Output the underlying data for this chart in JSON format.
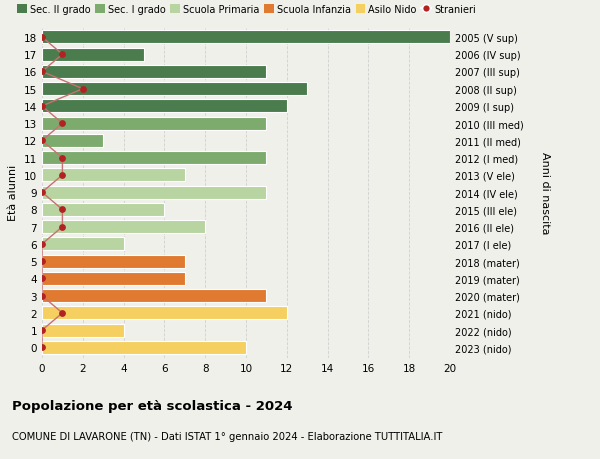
{
  "ages": [
    18,
    17,
    16,
    15,
    14,
    13,
    12,
    11,
    10,
    9,
    8,
    7,
    6,
    5,
    4,
    3,
    2,
    1,
    0
  ],
  "right_labels": [
    "2005 (V sup)",
    "2006 (IV sup)",
    "2007 (III sup)",
    "2008 (II sup)",
    "2009 (I sup)",
    "2010 (III med)",
    "2011 (II med)",
    "2012 (I med)",
    "2013 (V ele)",
    "2014 (IV ele)",
    "2015 (III ele)",
    "2016 (II ele)",
    "2017 (I ele)",
    "2018 (mater)",
    "2019 (mater)",
    "2020 (mater)",
    "2021 (nido)",
    "2022 (nido)",
    "2023 (nido)"
  ],
  "bar_values": [
    20,
    5,
    11,
    13,
    12,
    11,
    3,
    11,
    7,
    11,
    6,
    8,
    4,
    7,
    7,
    11,
    12,
    4,
    10
  ],
  "bar_colors": [
    "#4a7c4e",
    "#4a7c4e",
    "#4a7c4e",
    "#4a7c4e",
    "#4a7c4e",
    "#7dab6e",
    "#7dab6e",
    "#7dab6e",
    "#b8d4a0",
    "#b8d4a0",
    "#b8d4a0",
    "#b8d4a0",
    "#b8d4a0",
    "#e07a30",
    "#e07a30",
    "#e07a30",
    "#f5d060",
    "#f5d060",
    "#f5d060"
  ],
  "stranieri_values": [
    0,
    1,
    0,
    2,
    0,
    1,
    0,
    1,
    1,
    0,
    1,
    1,
    0,
    0,
    0,
    0,
    1,
    0,
    0
  ],
  "stranieri_color": "#b22222",
  "stranieri_line_color": "#c87070",
  "ylabel_left": "Età alunni",
  "ylabel_right": "Anni di nascita",
  "title": "Popolazione per età scolastica - 2024",
  "subtitle": "COMUNE DI LAVARONE (TN) - Dati ISTAT 1° gennaio 2024 - Elaborazione TUTTITALIA.IT",
  "xlim": [
    0,
    20
  ],
  "xticks": [
    0,
    2,
    4,
    6,
    8,
    10,
    12,
    14,
    16,
    18,
    20
  ],
  "legend_labels": [
    "Sec. II grado",
    "Sec. I grado",
    "Scuola Primaria",
    "Scuola Infanzia",
    "Asilo Nido",
    "Stranieri"
  ],
  "legend_colors": [
    "#4a7c4e",
    "#7dab6e",
    "#b8d4a0",
    "#e07a30",
    "#f5d060",
    "#b22222"
  ],
  "bg_color": "#f0f0eb",
  "grid_color": "#d0d0d0"
}
